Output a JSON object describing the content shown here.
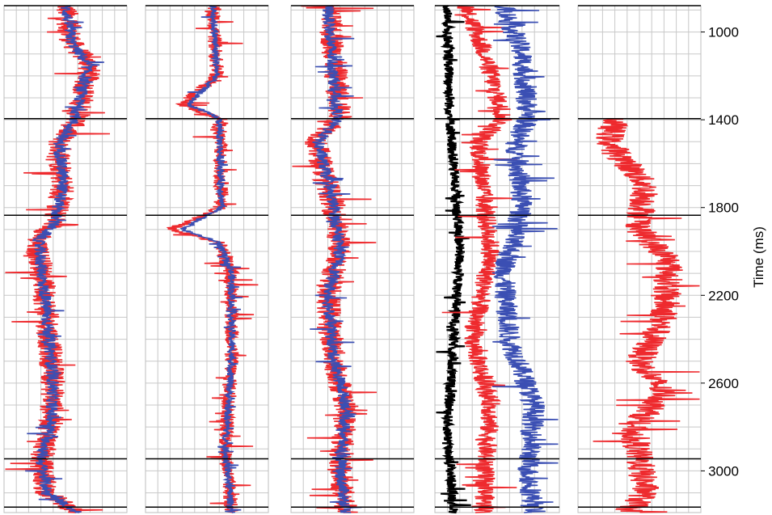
{
  "chart_data": {
    "type": "line",
    "description_units": "time in ms on a shared vertical axis; track values are relative amplitude 0-1 across each track width",
    "ylabel": "Time (ms)",
    "ylim": [
      880,
      3190
    ],
    "y_ticks": [
      1000,
      1400,
      1800,
      2200,
      2600,
      3000
    ],
    "horizon_markers_ms": [
      880,
      1395,
      1835,
      2945,
      3165
    ],
    "colors": {
      "red": "#ee2a2e",
      "blue": "#3b4fb3",
      "black": "#000000",
      "grid": "#c8c8c8",
      "horizon": "#000000"
    },
    "tracks": [
      {
        "series": [
          {
            "color": "red",
            "base": [
              [
                880,
                0.5
              ],
              [
                1050,
                0.55
              ],
              [
                1150,
                0.7
              ],
              [
                1395,
                0.6
              ],
              [
                1500,
                0.45
              ],
              [
                1700,
                0.48
              ],
              [
                1880,
                0.4
              ],
              [
                1950,
                0.25
              ],
              [
                2050,
                0.3
              ],
              [
                2300,
                0.35
              ],
              [
                2600,
                0.4
              ],
              [
                2800,
                0.38
              ],
              [
                2950,
                0.3
              ],
              [
                3100,
                0.35
              ],
              [
                3190,
                0.6
              ]
            ],
            "noise": 0.1
          },
          {
            "color": "blue",
            "base": [
              [
                880,
                0.5
              ],
              [
                1050,
                0.55
              ],
              [
                1150,
                0.68
              ],
              [
                1395,
                0.58
              ],
              [
                1500,
                0.45
              ],
              [
                1700,
                0.48
              ],
              [
                1880,
                0.4
              ],
              [
                1950,
                0.28
              ],
              [
                2050,
                0.3
              ],
              [
                2300,
                0.35
              ],
              [
                2600,
                0.4
              ],
              [
                2800,
                0.38
              ],
              [
                2950,
                0.3
              ],
              [
                3100,
                0.35
              ],
              [
                3190,
                0.6
              ]
            ],
            "noise": 0.05
          }
        ]
      },
      {
        "series": [
          {
            "color": "red",
            "base": [
              [
                880,
                0.55
              ],
              [
                1200,
                0.58
              ],
              [
                1330,
                0.3
              ],
              [
                1395,
                0.6
              ],
              [
                1800,
                0.62
              ],
              [
                1900,
                0.2
              ],
              [
                1960,
                0.6
              ],
              [
                2100,
                0.7
              ],
              [
                2500,
                0.7
              ],
              [
                2900,
                0.65
              ],
              [
                3190,
                0.7
              ]
            ],
            "noise": 0.06
          },
          {
            "color": "blue",
            "base": [
              [
                880,
                0.55
              ],
              [
                1200,
                0.58
              ],
              [
                1330,
                0.35
              ],
              [
                1395,
                0.6
              ],
              [
                1800,
                0.62
              ],
              [
                1900,
                0.3
              ],
              [
                1960,
                0.6
              ],
              [
                2100,
                0.7
              ],
              [
                2500,
                0.7
              ],
              [
                2900,
                0.65
              ],
              [
                3190,
                0.7
              ]
            ],
            "noise": 0.03
          }
        ]
      },
      {
        "series": [
          {
            "color": "red",
            "base": [
              [
                880,
                0.3
              ],
              [
                1100,
                0.35
              ],
              [
                1395,
                0.4
              ],
              [
                1500,
                0.2
              ],
              [
                1800,
                0.35
              ],
              [
                2000,
                0.4
              ],
              [
                2200,
                0.3
              ],
              [
                2500,
                0.35
              ],
              [
                2700,
                0.45
              ],
              [
                3000,
                0.4
              ],
              [
                3190,
                0.45
              ]
            ],
            "noise": 0.1
          },
          {
            "color": "blue",
            "base": [
              [
                880,
                0.3
              ],
              [
                1100,
                0.33
              ],
              [
                1395,
                0.38
              ],
              [
                1500,
                0.22
              ],
              [
                1800,
                0.35
              ],
              [
                2000,
                0.4
              ],
              [
                2200,
                0.3
              ],
              [
                2500,
                0.35
              ],
              [
                2700,
                0.45
              ],
              [
                3000,
                0.4
              ],
              [
                3190,
                0.45
              ]
            ],
            "noise": 0.05
          }
        ]
      },
      {
        "series": [
          {
            "color": "black",
            "base": [
              [
                880,
                0.1
              ],
              [
                1400,
                0.12
              ],
              [
                1600,
                0.15
              ],
              [
                2000,
                0.2
              ],
              [
                2400,
                0.15
              ],
              [
                2800,
                0.1
              ],
              [
                3190,
                0.15
              ]
            ],
            "noise": 0.04
          },
          {
            "color": "red",
            "base": [
              [
                880,
                0.25
              ],
              [
                1100,
                0.4
              ],
              [
                1395,
                0.55
              ],
              [
                1500,
                0.35
              ],
              [
                1800,
                0.4
              ],
              [
                2000,
                0.45
              ],
              [
                2400,
                0.3
              ],
              [
                2700,
                0.45
              ],
              [
                3000,
                0.4
              ],
              [
                3190,
                0.4
              ]
            ],
            "noise": 0.08
          },
          {
            "color": "blue",
            "base": [
              [
                880,
                0.55
              ],
              [
                1100,
                0.7
              ],
              [
                1395,
                0.75
              ],
              [
                1500,
                0.65
              ],
              [
                1800,
                0.7
              ],
              [
                2100,
                0.55
              ],
              [
                2400,
                0.6
              ],
              [
                2700,
                0.8
              ],
              [
                3000,
                0.75
              ],
              [
                3190,
                0.8
              ]
            ],
            "noise": 0.09
          }
        ]
      },
      {
        "series": [
          {
            "color": "red",
            "base": [
              [
                1395,
                0.3
              ],
              [
                1500,
                0.25
              ],
              [
                1700,
                0.55
              ],
              [
                1900,
                0.5
              ],
              [
                2050,
                0.75
              ],
              [
                2300,
                0.7
              ],
              [
                2500,
                0.5
              ],
              [
                2650,
                0.7
              ],
              [
                2800,
                0.45
              ],
              [
                2950,
                0.5
              ],
              [
                3100,
                0.55
              ],
              [
                3190,
                0.4
              ]
            ],
            "noise": 0.12
          }
        ]
      }
    ]
  }
}
